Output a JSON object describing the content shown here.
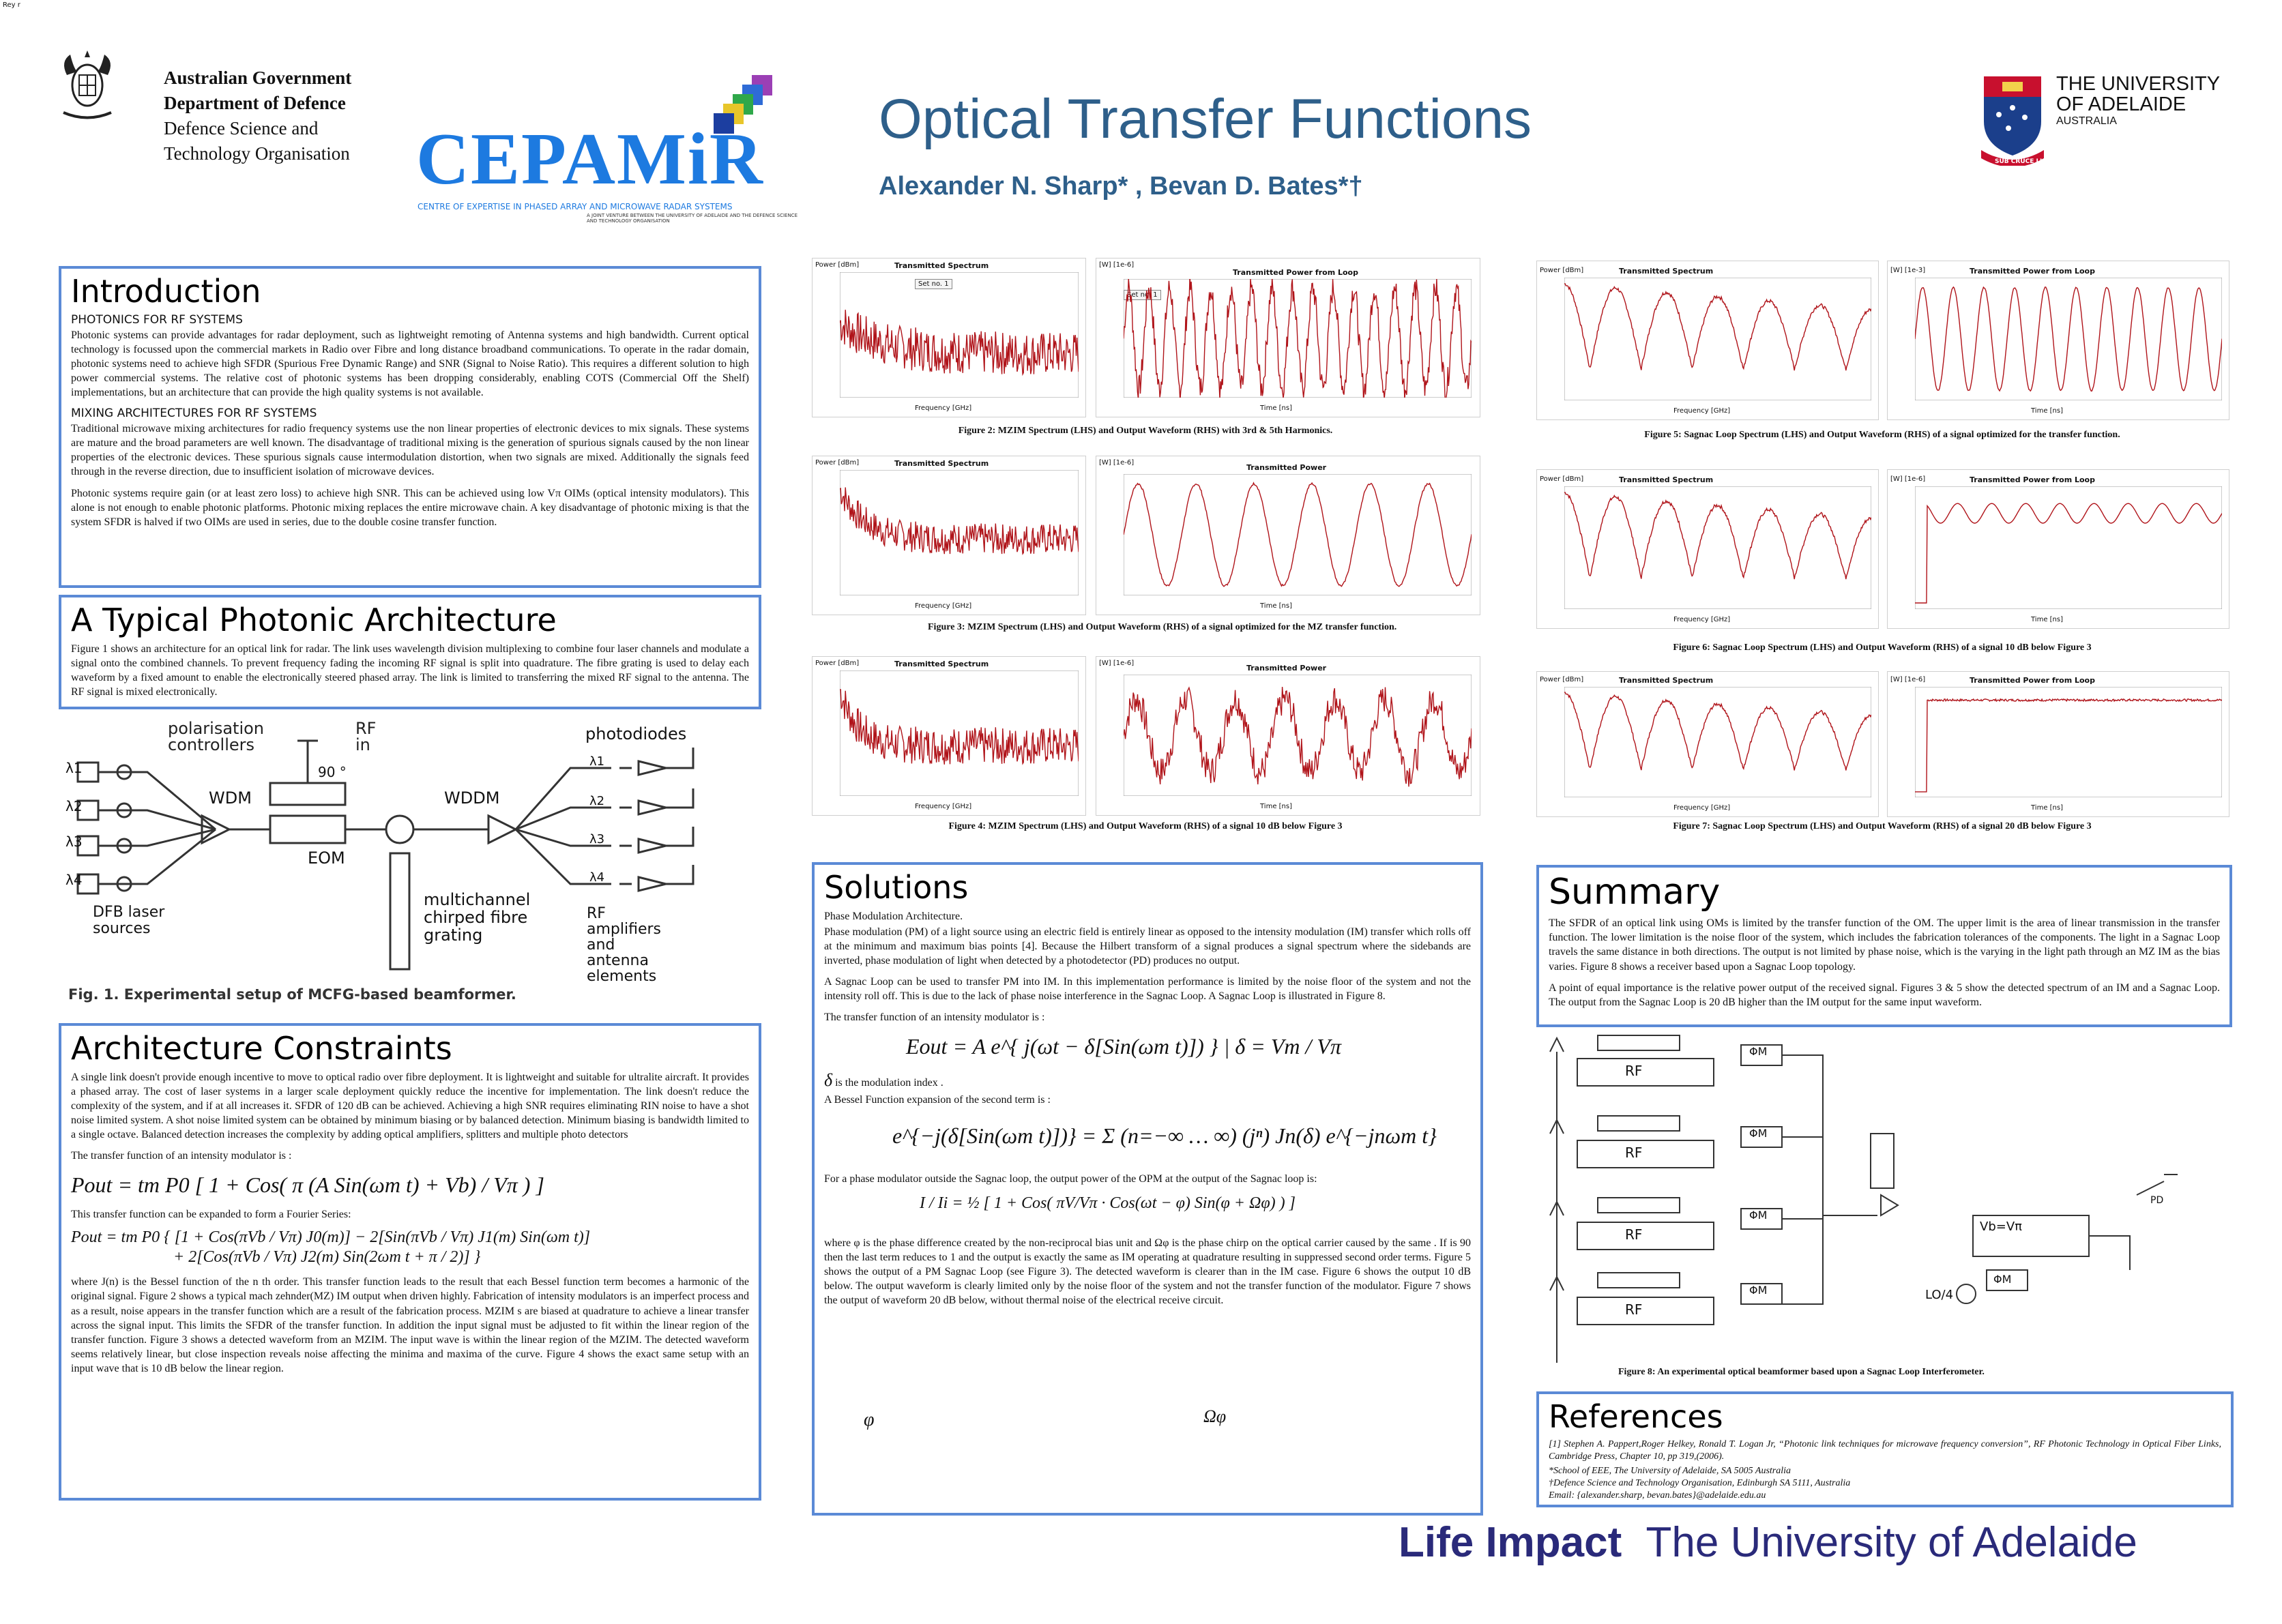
{
  "corner_mark": "Rey r",
  "header": {
    "defence": [
      "Australian Government",
      "Department of Defence",
      "Defence Science and",
      "Technology Organisation"
    ],
    "cepamir": "CEPAMiR",
    "cepamir_sub": "CENTRE OF EXPERTISE IN PHASED ARRAY AND MICROWAVE RADAR SYSTEMS",
    "cepamir_sub2": "A JOINT VENTURE BETWEEN THE UNIVERSITY OF ADELAIDE AND THE DEFENCE SCIENCE AND TECHNOLOGY ORGANISATION",
    "title": "Optical Transfer Functions",
    "authors": "Alexander N. Sharp* , Bevan D. Bates*†",
    "uni_line1": "THE UNIVERSITY",
    "uni_line2": "OF ADELAIDE",
    "uni_line3": "AUSTRALIA",
    "uni_motto": "SUB CRUCE LUMEN"
  },
  "intro": {
    "title": "Introduction",
    "sub1": "PHOTONICS FOR RF SYSTEMS",
    "p1": "Photonic systems can provide advantages for radar deployment, such as lightweight remoting of Antenna systems and high bandwidth. Current optical technology is focussed upon the commercial markets in Radio over Fibre and long distance broadband communications. To operate in the radar domain, photonic systems need to achieve high SFDR (Spurious Free Dynamic Range) and SNR (Signal to Noise Ratio). This requires a different solution to high power commercial systems. The relative cost of photonic systems has been dropping considerably, enabling COTS (Commercial Off the Shelf) implementations, but an architecture that can provide the high quality systems is not available.",
    "sub2": "MIXING ARCHITECTURES FOR RF SYSTEMS",
    "p2": "Traditional microwave mixing architectures for radio frequency systems use the non linear properties of electronic devices to mix signals. These systems are mature and the broad parameters are well known. The disadvantage of traditional mixing is the generation of spurious signals caused by the non linear properties of the electronic devices. These spurious signals cause intermodulation distortion, when two signals are mixed. Additionally the signals feed through in the reverse direction, due to insufficient isolation of microwave devices.",
    "p3": "Photonic systems require gain (or at least zero loss) to achieve high SNR. This can be achieved using low Vπ OIMs (optical intensity modulators). This alone is not enough to enable photonic platforms. Photonic mixing replaces the entire microwave chain. A key disadvantage of photonic mixing is that the system SFDR is halved if two OIMs are used in series, due to the double cosine transfer function."
  },
  "arch": {
    "title": "A Typical Photonic  Architecture",
    "p1": "Figure 1 shows an architecture for an optical link for radar. The link uses wavelength division multiplexing to combine four laser channels and modulate a signal onto the combined channels. To prevent frequency fading the incoming RF signal is split into quadrature. The fibre grating is used to delay each waveform by a fixed amount to enable the electronically steered phased array. The link is limited to transferring the mixed RF signal to the antenna. The RF signal is mixed electronically.",
    "fig": {
      "polarisation": "polarisation",
      "controllers": "controllers",
      "rf": "RF",
      "in": "in",
      "deg": "90 °",
      "wdm": "WDM",
      "wddm": "WDDM",
      "eom": "EOM",
      "photodiodes": "photodiodes",
      "lambdas": [
        "λ1",
        "λ2",
        "λ3",
        "λ4"
      ],
      "dfb": [
        "DFB laser",
        "sources"
      ],
      "mcfg": [
        "multichannel",
        "chirped fibre",
        "grating"
      ],
      "rfamp": [
        "RF",
        "amplifiers",
        "and",
        "antenna",
        "elements"
      ],
      "caption": "Fig. 1.    Experimental setup of MCFG-based beamformer."
    }
  },
  "constraints": {
    "title": "Architecture Constraints",
    "p1": "A single link doesn't provide enough incentive to move to optical radio over fibre deployment. It is lightweight and suitable for ultralite aircraft. It provides a phased array. The cost of laser systems in a larger scale deployment quickly reduce the incentive for implementation. The link doesn't reduce the complexity of the system, and if at all increases it. SFDR of 120 dB can be achieved. Achieving a high SNR requires eliminating RIN noise to have a shot noise limited system. A shot noise limited system can be obtained by minimum biasing or by balanced detection. Minimum biasing is bandwidth limited to a single octave. Balanced detection increases the complexity by adding optical amplifiers, splitters and multiple photo detectors",
    "p2": "The transfer function of an intensity modulator is :",
    "eq1": "Pout = tm P0 [ 1 + Cos( π (A Sin(ωm t) + Vb) / Vπ ) ]",
    "p3": "This transfer function can be expanded to form a Fourier Series:",
    "eq2a": "Pout = tm P0 { [1 + Cos(πVb / Vπ) J0(m)] − 2[Sin(πVb / Vπ) J1(m) Sin(ωm t)]",
    "eq2b": "+ 2[Cos(πVb / Vπ) J2(m) Sin(2ωm t + π / 2)] }",
    "p4": "where J(n) is the Bessel function of the n th order. This transfer function leads to the result that each Bessel function term becomes a harmonic of the original signal. Figure 2 shows a typical mach zehnder(MZ) IM output when driven highly. Fabrication of intensity modulators is an imperfect process and as a result, noise appears in the transfer function which are a result of the fabrication process. MZIM s are biased at quadrature to achieve a linear transfer across the signal input. This limits the SFDR of the transfer function. In addition the input signal must be adjusted to fit within the linear region of the transfer function. Figure 3 shows a detected waveform from an MZIM. The input wave is within the linear region of the MZIM. The detected waveform seems relatively linear, but close inspection reveals noise affecting the minima and maxima of the curve. Figure 4 shows the exact same setup with an input wave that is 10 dB below the linear region."
  },
  "solutions": {
    "title": "Solutions",
    "p0": "Phase Modulation Architecture.",
    "p1": "Phase modulation (PM) of a light source using an electric field is entirely linear as opposed to the intensity modulation (IM) transfer which rolls off at the minimum and maximum bias points [4]. Because the Hilbert transform of a signal produces a signal spectrum where the sidebands are inverted, phase modulation of light when detected by a photodetector (PD) produces no output.",
    "p2": "A Sagnac Loop can be used to transfer PM into IM. In this implementation performance is limited by the noise floor of the system and not the intensity roll off. This is due to the lack of phase noise interference in the Sagnac Loop. A Sagnac Loop is illustrated in Figure 8.",
    "p3": "The transfer function of an intensity modulator is :",
    "eq1": "Eout = A e^{ j(ωt − δ[Sin(ωm t)]) } | δ = Vm / Vπ",
    "delta": "δ",
    "p4": "is the modulation index .",
    "p5": "A Bessel Function expansion of the second term is :",
    "eq2": "e^{−j(δ[Sin(ωm t)])} = Σ (n=−∞ … ∞) (jⁿ) Jn(δ) e^{−jnωm t}",
    "p6": "For a phase modulator outside the Sagnac loop, the output power of the OPM at the output of the Sagnac loop is:",
    "eq3": "I / Ii = ½ [ 1 + Cos( πV/Vπ · Cos(ωt − φ) Sin(φ + Ωφ) ) ]",
    "phi": "φ",
    "omegaphi": "Ωφ",
    "p7": "where φ is the phase difference created by the non-reciprocal bias unit and Ωφ is the phase chirp on the optical carrier caused by the same . If is 90 then the last term reduces to 1 and the output is exactly the same as IM operating at quadrature resulting in suppressed second order terms. Figure 5 shows the output of a PM Sagnac Loop (see Figure 3). The detected waveform is clearer than in the IM case. Figure 6 shows the output 10 dB below. The output waveform is clearly limited only by the noise floor of the system and not the transfer function of the modulator. Figure 7 shows the output of waveform 20 dB below, without thermal noise of the electrical receive circuit."
  },
  "summary": {
    "title": "Summary",
    "p1": "The SFDR of an optical link using OMs is limited by the transfer function of the OM. The upper limit is the area of linear transmission in the transfer function. The lower limitation is the noise floor of the system, which includes the fabrication tolerances of the components. The light in a Sagnac Loop travels the same distance in both directions. The output is not limited by phase noise, which is the varying in the light path through an MZ IM as the bias varies. Figure 8 shows a receiver based upon a Sagnac Loop topology.",
    "p2": "A point of equal importance is the relative power output of the received signal. Figures 3 & 5 show the detected spectrum of an IM and a Sagnac Loop. The output from the Sagnac Loop is 20 dB higher than the IM output for the same input waveform."
  },
  "fig8": {
    "caption": "Figure 8: An experimental optical beamformer based upon a Sagnac Loop Interferometer.",
    "rf": "RF",
    "phim": "ΦM",
    "vb": "Vb=Vπ",
    "lo": "LO/4",
    "pd": "PD"
  },
  "references": {
    "title": "References",
    "r1": "[1]  Stephen A. Pappert,Roger Helkey, Ronald T. Logan Jr,  “Photonic link techniques for microwave frequency conversion”, RF Photonic Technology in Optical Fiber Links, Cambridge Press, Chapter 10, pp 319,(2006).",
    "r2": "*School of EEE, The University of Adelaide, SA 5005 Australia",
    "r3": "†Defence Science and Technology Organisation, Edinburgh SA 5111, Australia",
    "r4": "Email: {alexander.sharp, bevan.bates}@adelaide.edu.au"
  },
  "footer": {
    "life": "Life Impact",
    "uni": "The University of Adelaide"
  },
  "plots": {
    "spectrum": "Transmitted Spectrum",
    "power_loop": "Transmitted Power from Loop",
    "power": "Transmitted Power",
    "ylabel_dbm": "Power [dBm]",
    "ylabel_w": "[W] [1e-6]",
    "ylabel_w3": "[W] [1e-3]",
    "xlabel_ghz": "Frequency [GHz]",
    "xlabel_ns": "Time [ns]",
    "set_no": "Set no. 1"
  },
  "captions": {
    "fig2": "Figure 2: MZIM Spectrum (LHS) and Output Waveform (RHS) with 3rd & 5th Harmonics.",
    "fig3": "Figure 3:  MZIM Spectrum (LHS) and Output Waveform (RHS) of a signal optimized for the MZ transfer function.",
    "fig4": "Figure 4: MZIM Spectrum (LHS) and Output Waveform (RHS) of a signal 10 dB below Figure 3",
    "fig5": "Figure 5:  Sagnac Loop  Spectrum (LHS) and Output Waveform (RHS) of a signal optimized for the transfer function.",
    "fig6": "Figure 6:  Sagnac Loop Spectrum (LHS) and Output Waveform (RHS) of a signal 10 dB below Figure 3",
    "fig7": "Figure 7: Sagnac Loop  Spectrum (LHS) and Output Waveform (RHS) of a signal 20 dB below Figure 3"
  },
  "colors": {
    "accent_blue": "#3a6ea5",
    "box_border": "#5b8ad6",
    "title_blue": "#2e5f8a",
    "footer_navy": "#2a2a7a",
    "plot_red": "#b0141a"
  }
}
